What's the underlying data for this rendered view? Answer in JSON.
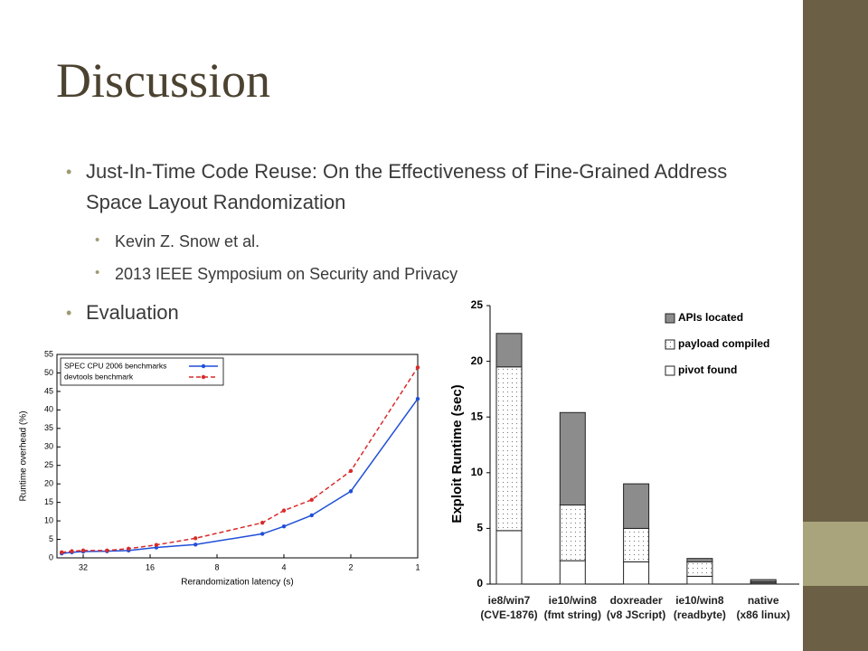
{
  "title": "Discussion",
  "bullets": [
    {
      "text": "Just-In-Time Code Reuse: On the Effectiveness of Fine-Grained Address Space Layout Randomization",
      "sub": [
        "Kevin Z. Snow et al.",
        "2013 IEEE Symposium on Security and Privacy"
      ]
    },
    {
      "text": "Evaluation",
      "sub": []
    }
  ],
  "chart_data": [
    {
      "type": "line",
      "xlabel": "Rerandomization latency (s)",
      "ylabel": "Runtime overhead (%)",
      "x": [
        40,
        36,
        32,
        25,
        20,
        15,
        10,
        5,
        4,
        3,
        2,
        1
      ],
      "series": [
        {
          "name": "SPEC CPU 2006 benchmarks",
          "color": "#1f4fd8",
          "linestyle": "solid",
          "values": [
            1.2,
            1.5,
            1.7,
            1.8,
            2.0,
            2.8,
            3.6,
            6.5,
            8.5,
            11.5,
            18,
            43
          ]
        },
        {
          "name": "devtools benchmark",
          "color": "#d92b2b",
          "linestyle": "dashed",
          "values": [
            1.5,
            1.8,
            2.0,
            2.0,
            2.5,
            3.5,
            5.3,
            9.5,
            12.8,
            15.7,
            23.5,
            51.5
          ]
        }
      ],
      "xlim": [
        42,
        1
      ],
      "xticks": [
        32,
        16,
        8,
        4,
        2,
        1
      ],
      "xlog": true,
      "ylim": [
        0,
        55
      ],
      "yticks": [
        0,
        5,
        10,
        15,
        20,
        25,
        30,
        35,
        40,
        45,
        50,
        55
      ],
      "grid": false,
      "legend": "upper left"
    },
    {
      "type": "stacked-bar",
      "ylabel": "Exploit Runtime (sec)",
      "categories": [
        "ie8/win7\n(CVE-1876)",
        "ie10/win8\n(fmt string)",
        "doxreader\n(v8 JScript)",
        "ie10/win8\n(readbyte)",
        "native\n(x86 linux)"
      ],
      "series": [
        {
          "name": "pivot found",
          "color": "#ffffff",
          "hatch": "none",
          "values": [
            4.8,
            2.1,
            2.0,
            0.7,
            0.1
          ]
        },
        {
          "name": "payload compiled",
          "color": "#ffffff",
          "hatch": "dots",
          "values": [
            14.7,
            5.0,
            3.0,
            1.3,
            0.1
          ]
        },
        {
          "name": "APIs located",
          "color": "#8c8c8c",
          "hatch": "none",
          "values": [
            3.0,
            8.3,
            4.0,
            0.3,
            0.2
          ]
        }
      ],
      "ylim": [
        0,
        25
      ],
      "yticks": [
        0,
        5,
        10,
        15,
        20,
        25
      ],
      "grid": false,
      "legend": "upper right"
    }
  ]
}
